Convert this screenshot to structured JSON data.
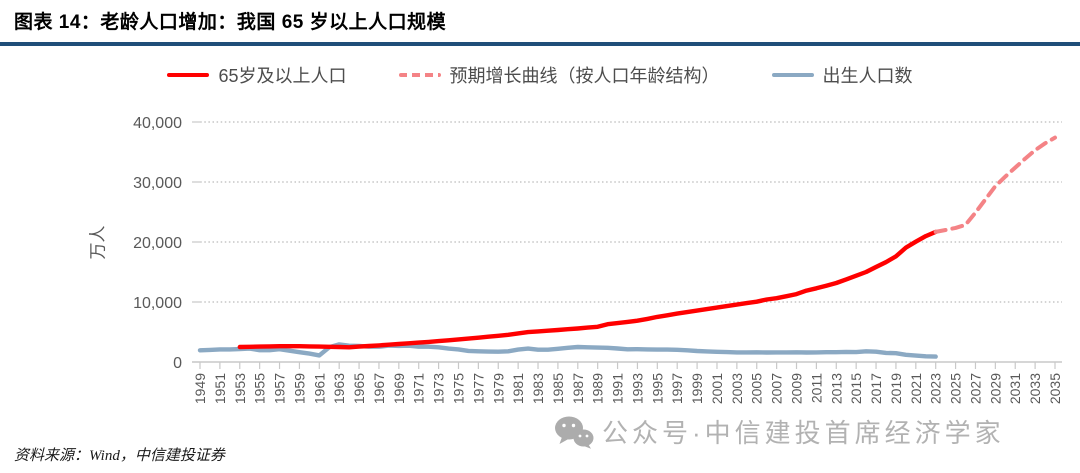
{
  "header": {
    "title": "图表 14：老龄人口增加：我国 65 岁以上人口规模"
  },
  "legend": {
    "items": [
      {
        "id": "aged65plus",
        "label": "65岁及以上人口"
      },
      {
        "id": "projection",
        "label": "预期增长曲线（按人口年龄结构）"
      },
      {
        "id": "births",
        "label": "出生人口数"
      }
    ]
  },
  "colors": {
    "aged65plus": "#FF0000",
    "projection": "#F48386",
    "births": "#8BA9C3",
    "title_rule": "#1F4E79",
    "axis_text": "#595959",
    "watermark": "#A5A5A5"
  },
  "watermark": {
    "icon": "wechat-icon",
    "text": "公众号·中信建投首席经济学家"
  },
  "footer": {
    "source": "资料来源：Wind，中信建投证券"
  },
  "chart_data": {
    "type": "line",
    "title": "我国 65 岁以上人口规模",
    "ylabel": "万人",
    "xlabel": "",
    "ylim": [
      0,
      40000
    ],
    "xlim": [
      1949,
      2035
    ],
    "grid": "horizontal-dotted",
    "legend_position": "top",
    "yticks": [
      0,
      10000,
      20000,
      30000,
      40000
    ],
    "ytick_labels": [
      "0",
      "10,000",
      "20,000",
      "30,000",
      "40,000"
    ],
    "xticks": [
      1949,
      1951,
      1953,
      1955,
      1957,
      1959,
      1961,
      1963,
      1965,
      1967,
      1969,
      1971,
      1973,
      1975,
      1977,
      1979,
      1981,
      1983,
      1985,
      1987,
      1989,
      1991,
      1993,
      1995,
      1997,
      1999,
      2001,
      2003,
      2005,
      2007,
      2009,
      2011,
      2013,
      2015,
      2017,
      2019,
      2021,
      2023,
      2025,
      2027,
      2029,
      2031,
      2033,
      2035
    ],
    "series": [
      {
        "id": "births",
        "name": "出生人口数",
        "color": "#8BA9C3",
        "style": "solid",
        "width": 4.4,
        "data": [
          [
            1949,
            1950
          ],
          [
            1950,
            2023
          ],
          [
            1951,
            2107
          ],
          [
            1952,
            2105
          ],
          [
            1953,
            2151
          ],
          [
            1954,
            2232
          ],
          [
            1955,
            1965
          ],
          [
            1956,
            1961
          ],
          [
            1957,
            2138
          ],
          [
            1958,
            1889
          ],
          [
            1959,
            1635
          ],
          [
            1960,
            1402
          ],
          [
            1961,
            1100
          ],
          [
            1962,
            2451
          ],
          [
            1963,
            2934
          ],
          [
            1964,
            2721
          ],
          [
            1965,
            2679
          ],
          [
            1966,
            2554
          ],
          [
            1967,
            2543
          ],
          [
            1968,
            2731
          ],
          [
            1969,
            2690
          ],
          [
            1970,
            2710
          ],
          [
            1971,
            2551
          ],
          [
            1972,
            2550
          ],
          [
            1973,
            2447
          ],
          [
            1974,
            2226
          ],
          [
            1975,
            2102
          ],
          [
            1976,
            1849
          ],
          [
            1977,
            1783
          ],
          [
            1978,
            1733
          ],
          [
            1979,
            1715
          ],
          [
            1980,
            1776
          ],
          [
            1981,
            2064
          ],
          [
            1982,
            2230
          ],
          [
            1983,
            2052
          ],
          [
            1984,
            2050
          ],
          [
            1985,
            2196
          ],
          [
            1986,
            2374
          ],
          [
            1987,
            2508
          ],
          [
            1988,
            2445
          ],
          [
            1989,
            2396
          ],
          [
            1990,
            2374
          ],
          [
            1991,
            2258
          ],
          [
            1992,
            2119
          ],
          [
            1993,
            2126
          ],
          [
            1994,
            2098
          ],
          [
            1995,
            2063
          ],
          [
            1996,
            2067
          ],
          [
            1997,
            2038
          ],
          [
            1998,
            1942
          ],
          [
            1999,
            1834
          ],
          [
            2000,
            1771
          ],
          [
            2001,
            1702
          ],
          [
            2002,
            1647
          ],
          [
            2003,
            1599
          ],
          [
            2004,
            1593
          ],
          [
            2005,
            1617
          ],
          [
            2006,
            1585
          ],
          [
            2007,
            1595
          ],
          [
            2008,
            1608
          ],
          [
            2009,
            1615
          ],
          [
            2010,
            1588
          ],
          [
            2011,
            1604
          ],
          [
            2012,
            1635
          ],
          [
            2013,
            1640
          ],
          [
            2014,
            1687
          ],
          [
            2015,
            1655
          ],
          [
            2016,
            1786
          ],
          [
            2017,
            1723
          ],
          [
            2018,
            1523
          ],
          [
            2019,
            1465
          ],
          [
            2020,
            1202
          ],
          [
            2021,
            1062
          ],
          [
            2022,
            956
          ],
          [
            2023,
            902
          ]
        ]
      },
      {
        "id": "aged65plus",
        "name": "65岁及以上人口",
        "color": "#FF0000",
        "style": "solid",
        "width": 4.4,
        "data": [
          [
            1953,
            2504
          ],
          [
            1954,
            2534
          ],
          [
            1955,
            2565
          ],
          [
            1956,
            2595
          ],
          [
            1957,
            2626
          ],
          [
            1958,
            2640
          ],
          [
            1959,
            2630
          ],
          [
            1960,
            2600
          ],
          [
            1961,
            2570
          ],
          [
            1962,
            2530
          ],
          [
            1963,
            2495
          ],
          [
            1964,
            2458
          ],
          [
            1965,
            2560
          ],
          [
            1966,
            2665
          ],
          [
            1967,
            2770
          ],
          [
            1968,
            2880
          ],
          [
            1969,
            2995
          ],
          [
            1970,
            3110
          ],
          [
            1971,
            3230
          ],
          [
            1972,
            3355
          ],
          [
            1973,
            3485
          ],
          [
            1974,
            3620
          ],
          [
            1975,
            3760
          ],
          [
            1976,
            3905
          ],
          [
            1977,
            4055
          ],
          [
            1978,
            4210
          ],
          [
            1979,
            4370
          ],
          [
            1980,
            4540
          ],
          [
            1981,
            4760
          ],
          [
            1982,
            4991
          ],
          [
            1983,
            5100
          ],
          [
            1984,
            5220
          ],
          [
            1985,
            5340
          ],
          [
            1986,
            5460
          ],
          [
            1987,
            5590
          ],
          [
            1988,
            5730
          ],
          [
            1989,
            5870
          ],
          [
            1990,
            6299
          ],
          [
            1991,
            6490
          ],
          [
            1992,
            6690
          ],
          [
            1993,
            6890
          ],
          [
            1994,
            7190
          ],
          [
            1995,
            7510
          ],
          [
            1996,
            7780
          ],
          [
            1997,
            8060
          ],
          [
            1998,
            8310
          ],
          [
            1999,
            8570
          ],
          [
            2000,
            8821
          ],
          [
            2001,
            9060
          ],
          [
            2002,
            9310
          ],
          [
            2003,
            9570
          ],
          [
            2004,
            9810
          ],
          [
            2005,
            10055
          ],
          [
            2006,
            10420
          ],
          [
            2007,
            10640
          ],
          [
            2008,
            10960
          ],
          [
            2009,
            11310
          ],
          [
            2010,
            11894
          ],
          [
            2011,
            12290
          ],
          [
            2012,
            12720
          ],
          [
            2013,
            13160
          ],
          [
            2014,
            13760
          ],
          [
            2015,
            14386
          ],
          [
            2016,
            15000
          ],
          [
            2017,
            15830
          ],
          [
            2018,
            16658
          ],
          [
            2019,
            17600
          ],
          [
            2020,
            19064
          ],
          [
            2021,
            20056
          ],
          [
            2022,
            20978
          ],
          [
            2023,
            21676
          ]
        ]
      },
      {
        "id": "projection",
        "name": "预期增长曲线（按人口年龄结构）",
        "color": "#F48386",
        "style": "dashed",
        "width": 4,
        "data": [
          [
            2023,
            21676
          ],
          [
            2024,
            22000
          ],
          [
            2025,
            22350
          ],
          [
            2026,
            22850
          ],
          [
            2027,
            24900
          ],
          [
            2028,
            27100
          ],
          [
            2029,
            29300
          ],
          [
            2030,
            30900
          ],
          [
            2031,
            32400
          ],
          [
            2032,
            33900
          ],
          [
            2033,
            35300
          ],
          [
            2034,
            36450
          ],
          [
            2035,
            37400
          ]
        ]
      }
    ]
  }
}
